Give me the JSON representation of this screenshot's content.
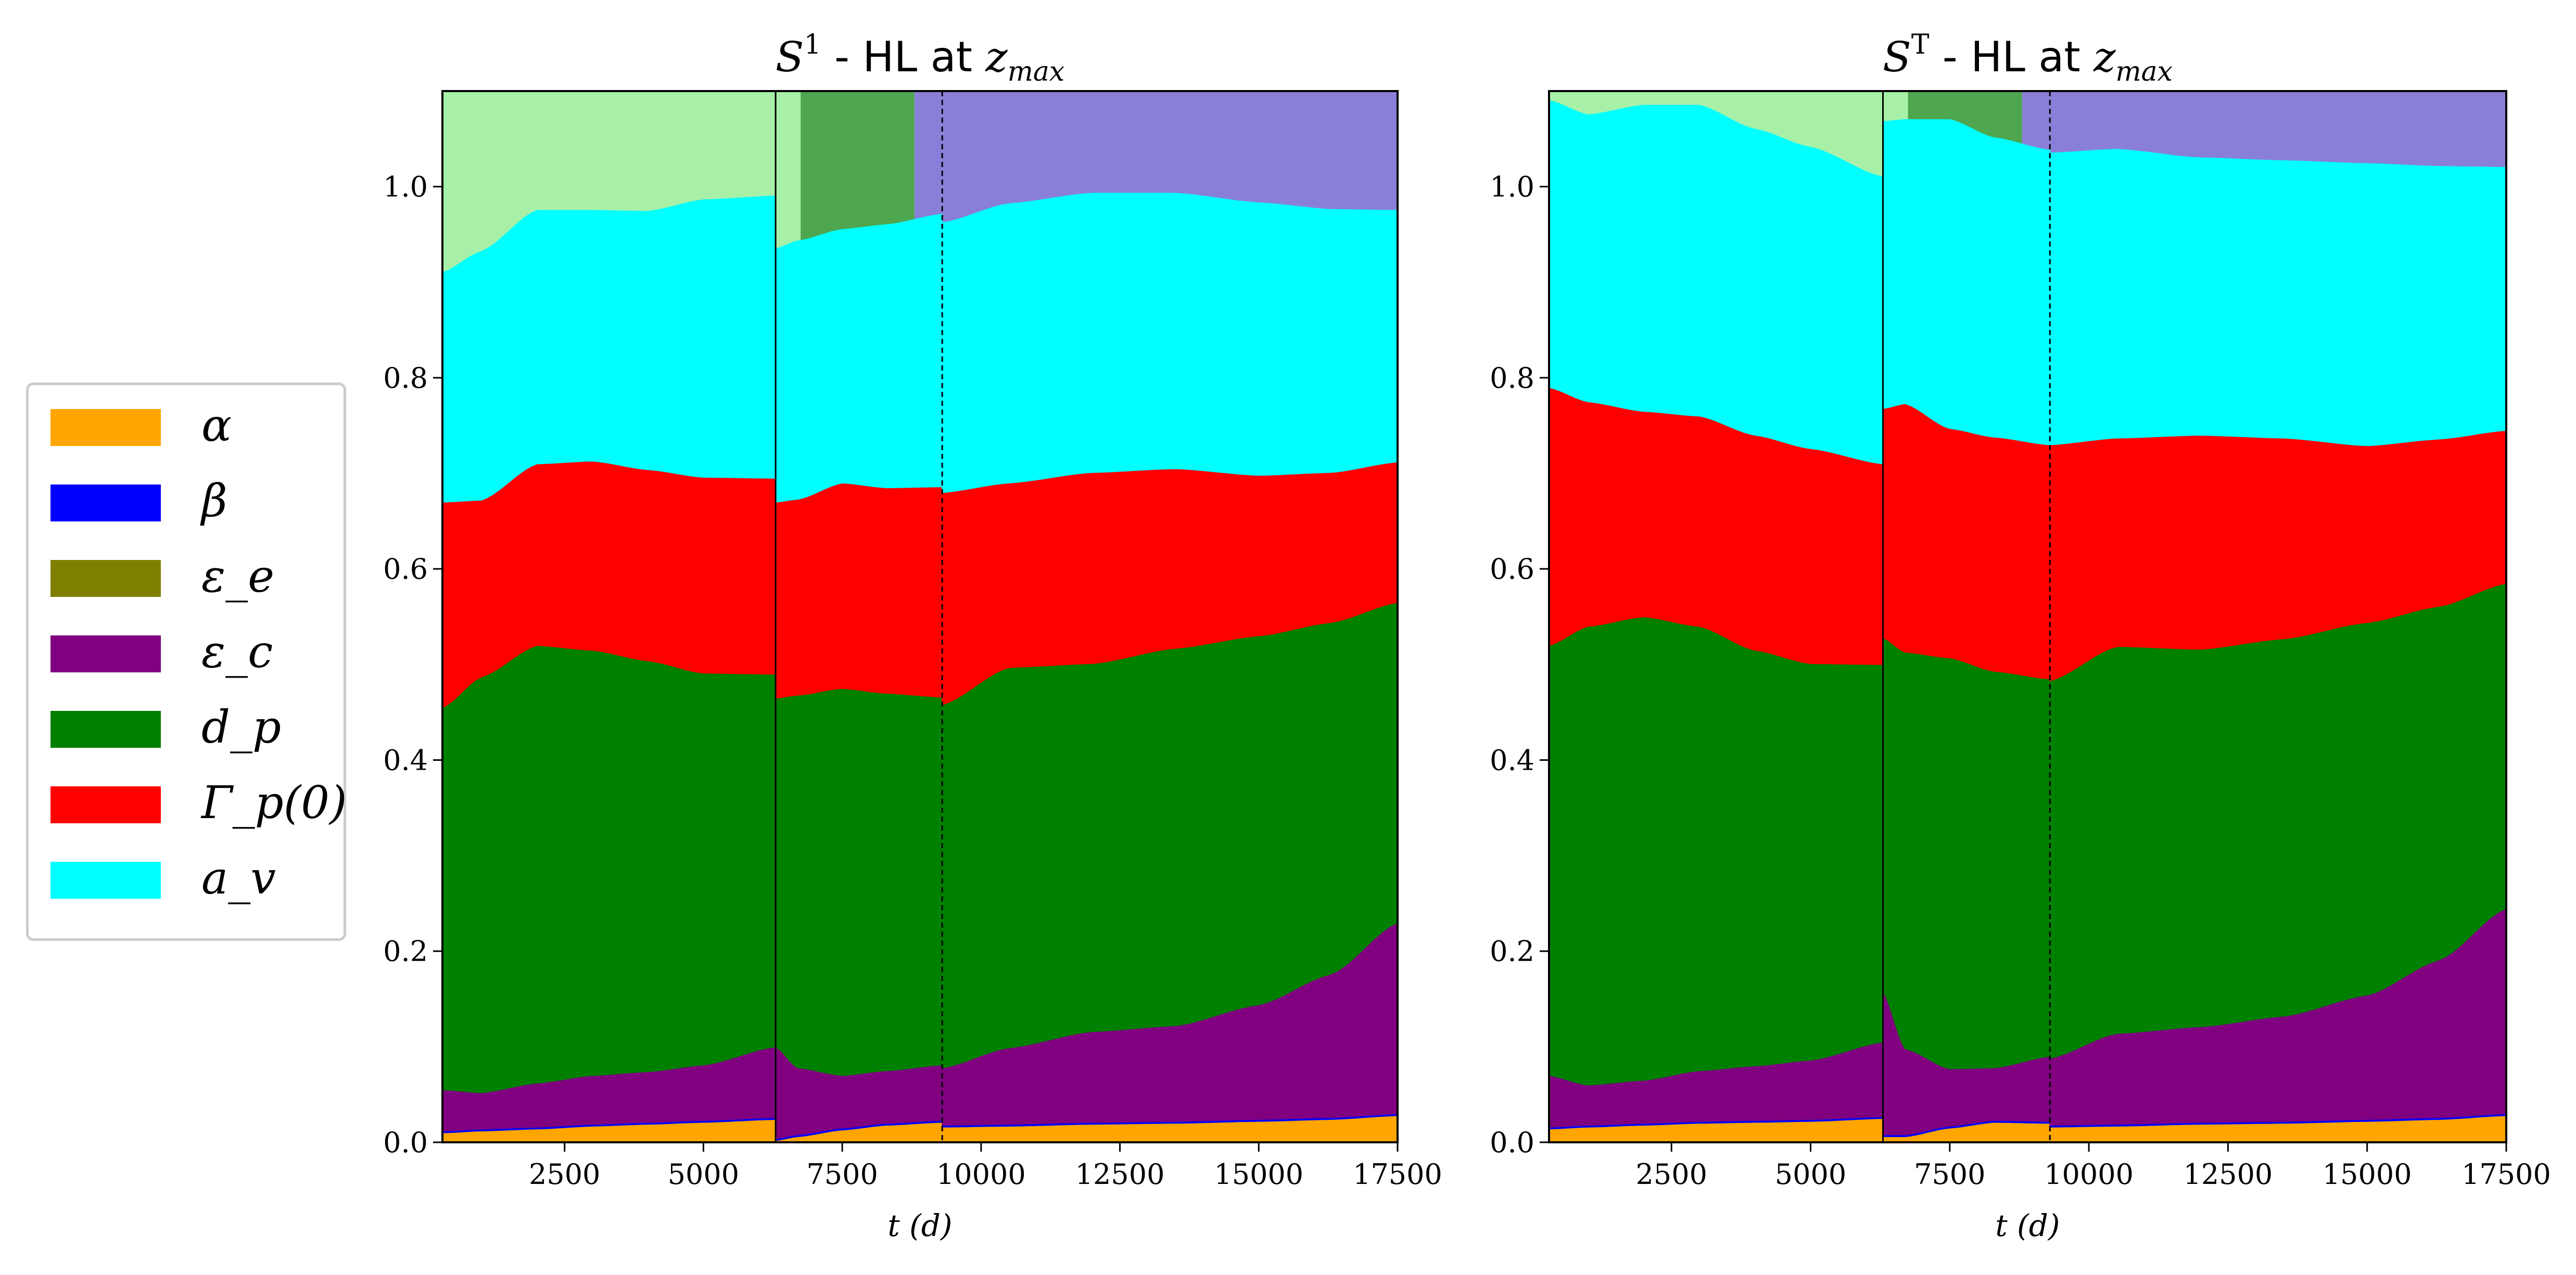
{
  "chart_data": [
    {
      "type": "area",
      "title": "S¹ - HL at z_max",
      "title_parts": {
        "symbol": "S",
        "sup": "1",
        "text": " - HL at ",
        "var": "z",
        "sub": "max"
      },
      "xlabel": "t (d)",
      "ylabel": "",
      "xlim": [
        300,
        17500
      ],
      "ylim": [
        0,
        1.1
      ],
      "xticks": [
        2500,
        5000,
        7500,
        10000,
        12500,
        15000,
        17500
      ],
      "yticks": [
        0.0,
        0.2,
        0.4,
        0.6,
        0.8,
        1.0
      ],
      "vlines": [
        {
          "x": 6300,
          "style": "solid"
        },
        {
          "x": 9300,
          "style": "dashed"
        }
      ],
      "background_blocks": [
        {
          "x0": 300,
          "x1": 6300,
          "y0": 0.91,
          "y1": 1.1,
          "color": "#a8f0a8"
        },
        {
          "x0": 6300,
          "x1": 6750,
          "y0": 0.93,
          "y1": 1.1,
          "color": "#a8f0a8"
        },
        {
          "x0": 6750,
          "x1": 8800,
          "y0": 0.93,
          "y1": 1.1,
          "color": "#4ea64e"
        },
        {
          "x0": 8800,
          "x1": 17500,
          "y0": 0.96,
          "y1": 1.1,
          "color": "#8a7fd8"
        }
      ],
      "segments": [
        {
          "x": [
            300,
            1000,
            2000,
            3000,
            4000,
            5000,
            6300
          ],
          "series": [
            {
              "name": "α",
              "values": [
                0.01,
                0.012,
                0.014,
                0.017,
                0.019,
                0.021,
                0.024
              ]
            },
            {
              "name": "β",
              "values": [
                0.002,
                0.002,
                0.002,
                0.002,
                0.002,
                0.002,
                0.002
              ]
            },
            {
              "name": "ε_e",
              "values": [
                0,
                0,
                0,
                0,
                0,
                0,
                0
              ]
            },
            {
              "name": "ε_c",
              "values": [
                0.043,
                0.038,
                0.046,
                0.051,
                0.053,
                0.058,
                0.074
              ]
            },
            {
              "name": "d_p",
              "values": [
                0.4,
                0.435,
                0.458,
                0.445,
                0.43,
                0.41,
                0.39
              ]
            },
            {
              "name": "Γ_p(0)",
              "values": [
                0.215,
                0.185,
                0.19,
                0.198,
                0.2,
                0.205,
                0.205
              ]
            },
            {
              "name": "a_v",
              "values": [
                0.24,
                0.26,
                0.265,
                0.262,
                0.27,
                0.29,
                0.295
              ]
            }
          ]
        },
        {
          "x": [
            6300,
            6700,
            7500,
            8300,
            9300
          ],
          "series": [
            {
              "name": "α",
              "values": [
                0.002,
                0.006,
                0.013,
                0.018,
                0.021
              ]
            },
            {
              "name": "β",
              "values": [
                0.002,
                0.002,
                0.002,
                0.002,
                0.002
              ]
            },
            {
              "name": "ε_c",
              "values": [
                0.096,
                0.07,
                0.055,
                0.055,
                0.058
              ]
            },
            {
              "name": "d_p",
              "values": [
                0.365,
                0.39,
                0.405,
                0.395,
                0.385
              ]
            },
            {
              "name": "Γ_p(0)",
              "values": [
                0.205,
                0.205,
                0.215,
                0.215,
                0.22
              ]
            },
            {
              "name": "a_v",
              "values": [
                0.265,
                0.27,
                0.265,
                0.275,
                0.285
              ]
            }
          ]
        },
        {
          "x": [
            9300,
            10500,
            12000,
            13500,
            15000,
            16300,
            17500
          ],
          "series": [
            {
              "name": "α",
              "values": [
                0.016,
                0.017,
                0.019,
                0.02,
                0.022,
                0.024,
                0.028
              ]
            },
            {
              "name": "β",
              "values": [
                0.002,
                0.002,
                0.002,
                0.002,
                0.002,
                0.002,
                0.002
              ]
            },
            {
              "name": "ε_c",
              "values": [
                0.06,
                0.08,
                0.095,
                0.1,
                0.12,
                0.15,
                0.2
              ]
            },
            {
              "name": "d_p",
              "values": [
                0.38,
                0.398,
                0.385,
                0.395,
                0.386,
                0.368,
                0.335
              ]
            },
            {
              "name": "Γ_p(0)",
              "values": [
                0.222,
                0.193,
                0.2,
                0.188,
                0.168,
                0.157,
                0.147
              ]
            },
            {
              "name": "a_v",
              "values": [
                0.282,
                0.292,
                0.292,
                0.288,
                0.285,
                0.275,
                0.263
              ]
            }
          ]
        }
      ]
    },
    {
      "type": "area",
      "title": "Sᵀ - HL at z_max",
      "title_parts": {
        "symbol": "S",
        "sup": "T",
        "text": " - HL at ",
        "var": "z",
        "sub": "max"
      },
      "xlabel": "t (d)",
      "ylabel": "",
      "xlim": [
        300,
        17500
      ],
      "ylim": [
        0,
        1.1
      ],
      "xticks": [
        2500,
        5000,
        7500,
        10000,
        12500,
        15000,
        17500
      ],
      "yticks": [
        0.0,
        0.2,
        0.4,
        0.6,
        0.8,
        1.0
      ],
      "vlines": [
        {
          "x": 6300,
          "style": "solid"
        },
        {
          "x": 9300,
          "style": "dashed"
        }
      ],
      "background_blocks": [
        {
          "x0": 300,
          "x1": 6300,
          "y0": 1.0,
          "y1": 1.1,
          "color": "#a8f0a8"
        },
        {
          "x0": 6300,
          "x1": 6750,
          "y0": 1.06,
          "y1": 1.1,
          "color": "#a8f0a8"
        },
        {
          "x0": 6750,
          "x1": 8800,
          "y0": 1.03,
          "y1": 1.1,
          "color": "#4ea64e"
        },
        {
          "x0": 8800,
          "x1": 17500,
          "y0": 1.02,
          "y1": 1.1,
          "color": "#8a7fd8"
        }
      ],
      "segments": [
        {
          "x": [
            300,
            1000,
            2000,
            3000,
            4000,
            5000,
            6300
          ],
          "series": [
            {
              "name": "α",
              "values": [
                0.014,
                0.016,
                0.018,
                0.02,
                0.021,
                0.022,
                0.025
              ]
            },
            {
              "name": "β",
              "values": [
                0.002,
                0.002,
                0.002,
                0.002,
                0.002,
                0.002,
                0.002
              ]
            },
            {
              "name": "ε_e",
              "values": [
                0,
                0,
                0,
                0,
                0,
                0,
                0
              ]
            },
            {
              "name": "ε_c",
              "values": [
                0.054,
                0.042,
                0.045,
                0.053,
                0.057,
                0.062,
                0.078
              ]
            },
            {
              "name": "d_p",
              "values": [
                0.45,
                0.48,
                0.485,
                0.465,
                0.435,
                0.415,
                0.395
              ]
            },
            {
              "name": "Γ_p(0)",
              "values": [
                0.27,
                0.235,
                0.215,
                0.22,
                0.225,
                0.225,
                0.21
              ]
            },
            {
              "name": "a_v",
              "values": [
                0.3,
                0.3,
                0.32,
                0.325,
                0.32,
                0.315,
                0.3
              ]
            }
          ]
        },
        {
          "x": [
            6300,
            6700,
            7500,
            8300,
            9300
          ],
          "series": [
            {
              "name": "α",
              "values": [
                0.006,
                0.006,
                0.015,
                0.021,
                0.02
              ]
            },
            {
              "name": "β",
              "values": [
                0.002,
                0.002,
                0.002,
                0.002,
                0.002
              ]
            },
            {
              "name": "ε_c",
              "values": [
                0.15,
                0.09,
                0.06,
                0.055,
                0.068
              ]
            },
            {
              "name": "d_p",
              "values": [
                0.37,
                0.415,
                0.43,
                0.415,
                0.395
              ]
            },
            {
              "name": "Γ_p(0)",
              "values": [
                0.24,
                0.26,
                0.24,
                0.245,
                0.245
              ]
            },
            {
              "name": "a_v",
              "values": [
                0.3,
                0.297,
                0.323,
                0.313,
                0.308
              ]
            }
          ]
        },
        {
          "x": [
            9300,
            10500,
            12000,
            13500,
            15000,
            16300,
            17500
          ],
          "series": [
            {
              "name": "α",
              "values": [
                0.016,
                0.017,
                0.019,
                0.02,
                0.022,
                0.024,
                0.028
              ]
            },
            {
              "name": "β",
              "values": [
                0.002,
                0.002,
                0.002,
                0.002,
                0.002,
                0.002,
                0.002
              ]
            },
            {
              "name": "ε_c",
              "values": [
                0.07,
                0.095,
                0.1,
                0.11,
                0.13,
                0.165,
                0.215
              ]
            },
            {
              "name": "d_p",
              "values": [
                0.395,
                0.405,
                0.395,
                0.395,
                0.39,
                0.37,
                0.34
              ]
            },
            {
              "name": "Γ_p(0)",
              "values": [
                0.247,
                0.218,
                0.224,
                0.21,
                0.185,
                0.175,
                0.16
              ]
            },
            {
              "name": "a_v",
              "values": [
                0.305,
                0.302,
                0.29,
                0.29,
                0.295,
                0.285,
                0.275
              ]
            }
          ]
        }
      ]
    }
  ],
  "legend": {
    "position": "left",
    "items": [
      {
        "name": "α",
        "color": "#ffa500"
      },
      {
        "name": "β",
        "color": "#0000ff"
      },
      {
        "name": "ε_e",
        "color": "#808000"
      },
      {
        "name": "ε_c",
        "color": "#800080"
      },
      {
        "name": "d_p",
        "color": "#008000"
      },
      {
        "name": "Γ_p(0)",
        "color": "#ff0000"
      },
      {
        "name": "a_v",
        "color": "#00ffff"
      }
    ]
  },
  "colors": {
    "α": "#ffa500",
    "β": "#0000ff",
    "ε_e": "#808000",
    "ε_c": "#800080",
    "d_p": "#008000",
    "Γ_p(0)": "#ff0000",
    "a_v": "#00ffff"
  }
}
